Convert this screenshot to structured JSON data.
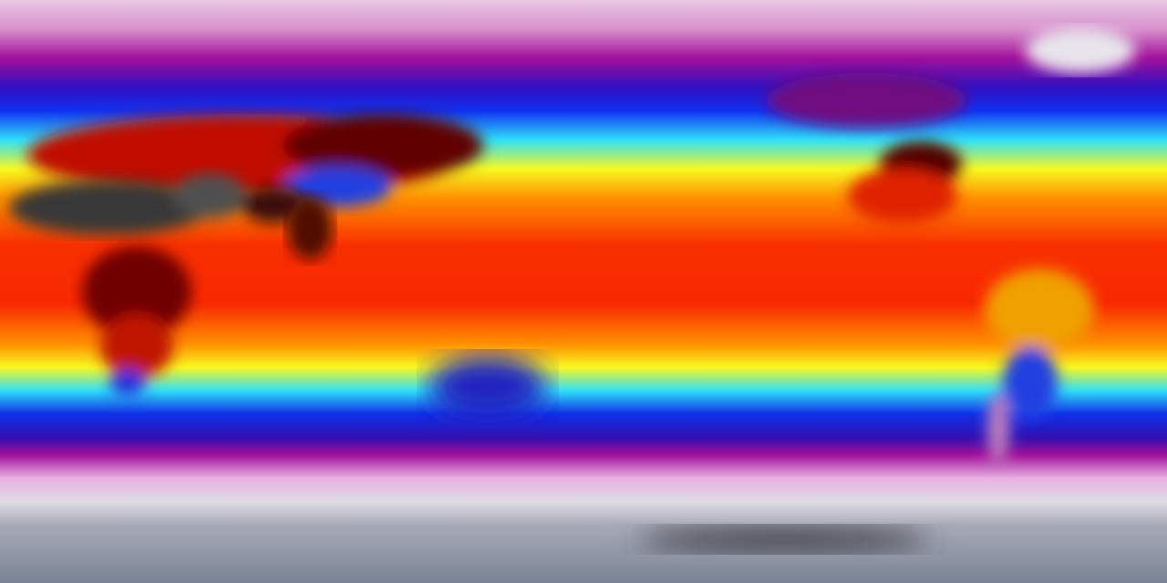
{
  "map": {
    "projection": "equirectangular",
    "colors": {
      "polar_north": "#e0a8d8",
      "magenta": "#a0109a",
      "purple": "#6a0aa8",
      "blue": "#1020e0",
      "cyan": "#30e0f8",
      "yellow": "#f8f820",
      "orange": "#ff8000",
      "red": "#f02000",
      "dark_red": "#700000",
      "desert_grey": "#3a3a3a",
      "polar_south_white": "#e8e0e8",
      "antarctic_grey": "#8a96a4",
      "greenland": "#e8e4ec"
    }
  }
}
